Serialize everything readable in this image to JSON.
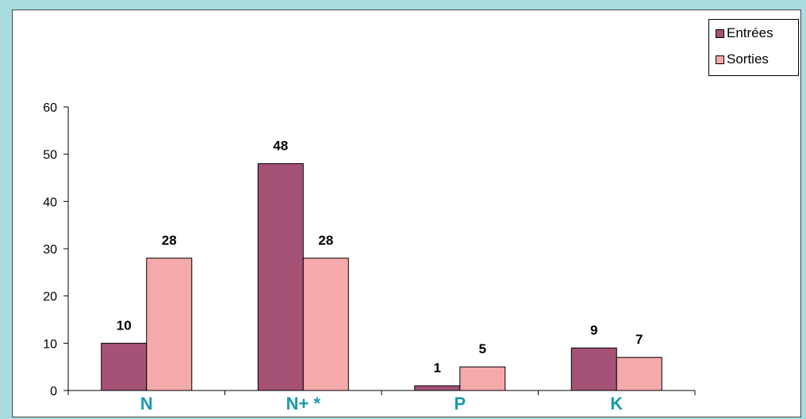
{
  "colors": {
    "background": "#a9dddd",
    "entrees": "#a65277",
    "sorties": "#f4a9ab",
    "category_label": "#1a9aaa"
  },
  "chart_data": {
    "type": "bar",
    "categories": [
      "N",
      "N+ *",
      "P",
      "K"
    ],
    "series": [
      {
        "name": "Entrées",
        "values": [
          10,
          48,
          1,
          9
        ]
      },
      {
        "name": "Sorties",
        "values": [
          28,
          28,
          5,
          7
        ]
      }
    ],
    "ylim": [
      0,
      60
    ],
    "yticks": [
      0,
      10,
      20,
      30,
      40,
      50,
      60
    ],
    "title": "",
    "xlabel": "",
    "ylabel": "",
    "grid": false,
    "legend_position": "top-right"
  }
}
